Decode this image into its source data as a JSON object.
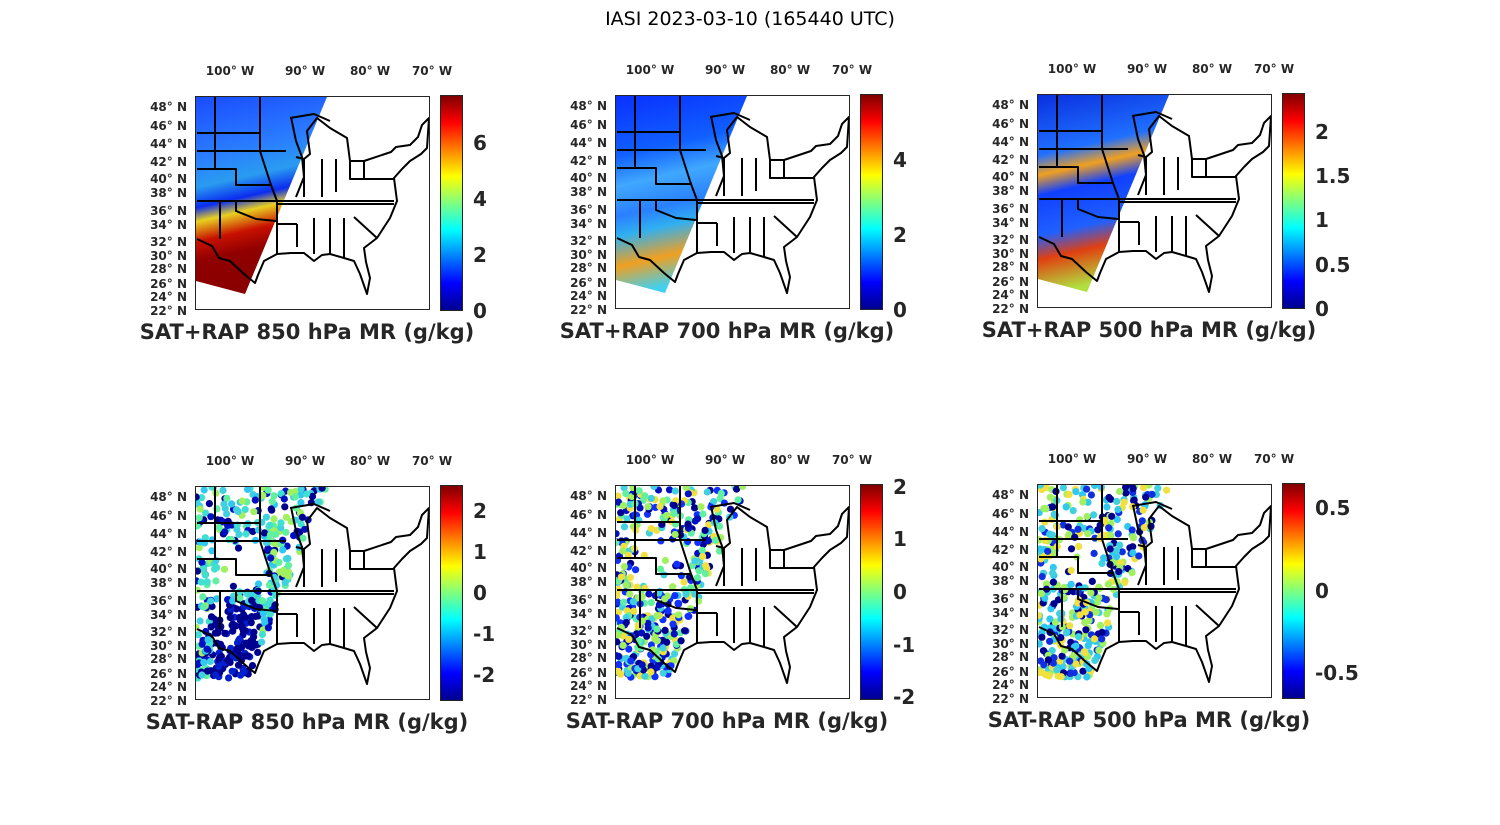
{
  "figure_title": "IASI 2023-03-10 (165440 UTC)",
  "lon_labels": [
    "100° W",
    "90° W",
    "80° W",
    "70° W"
  ],
  "lat_labels": [
    "48° N",
    "46° N",
    "44° N",
    "42° N",
    "40° N",
    "38° N",
    "36° N",
    "34° N",
    "32° N",
    "30° N",
    "28° N",
    "26° N",
    "24° N",
    "22° N"
  ],
  "colormap": "jet",
  "panels": [
    {
      "title": "SAT+RAP 850 hPa MR (g/kg)",
      "colorbar": {
        "range": [
          0,
          7.73
        ],
        "ticks": [
          "0",
          "2",
          "4",
          "6"
        ],
        "tick_values": [
          0,
          2,
          4,
          6
        ]
      }
    },
    {
      "title": "SAT+RAP 700 hPa MR (g/kg)",
      "colorbar": {
        "range": [
          0,
          5.77
        ],
        "ticks": [
          "0",
          "2",
          "4"
        ],
        "tick_values": [
          0,
          2,
          4
        ]
      }
    },
    {
      "title": "SAT+RAP 500 hPa MR (g/kg)",
      "colorbar": {
        "range": [
          0,
          2.44
        ],
        "ticks": [
          "0",
          "0.5",
          "1",
          "1.5",
          "2"
        ],
        "tick_values": [
          0,
          0.5,
          1,
          1.5,
          2
        ]
      }
    },
    {
      "title": "SAT-RAP 850 hPa MR (g/kg)",
      "colorbar": {
        "range": [
          -2.65,
          2.65
        ],
        "ticks": [
          "-2",
          "-1",
          "0",
          "1",
          "2"
        ],
        "tick_values": [
          -2,
          -1,
          0,
          1,
          2
        ]
      }
    },
    {
      "title": "SAT-RAP 700 hPa MR (g/kg)",
      "colorbar": {
        "range": [
          -2.05,
          2.05
        ],
        "ticks": [
          "-2",
          "-1",
          "0",
          "1",
          "2"
        ],
        "tick_values": [
          -2,
          -1,
          0,
          1,
          2
        ]
      }
    },
    {
      "title": "SAT-RAP 500 hPa MR (g/kg)",
      "colorbar": {
        "range": [
          -0.656,
          0.65
        ],
        "ticks": [
          "-0.5",
          "0",
          "0.5"
        ],
        "tick_values": [
          -0.5,
          0,
          0.5
        ]
      }
    }
  ]
}
